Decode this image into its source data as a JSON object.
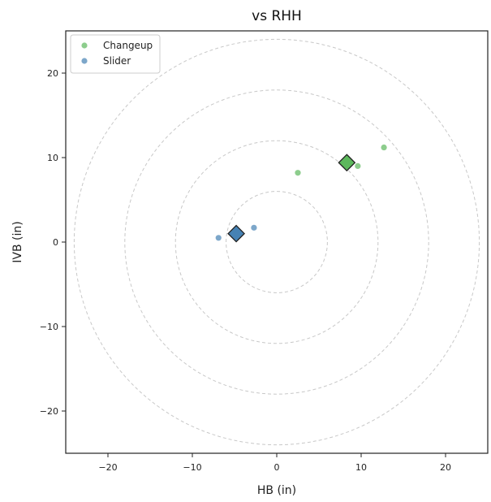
{
  "chart_data": {
    "type": "scatter",
    "title": "vs RHH",
    "xlabel": "HB (in)",
    "ylabel": "IVB (in)",
    "xlim": [
      -25,
      25
    ],
    "ylim": [
      -25,
      25
    ],
    "xticks": [
      -20,
      -10,
      0,
      10,
      20
    ],
    "yticks": [
      -20,
      -10,
      0,
      10,
      20
    ],
    "grid": false,
    "reference_circles_radii": [
      6,
      12,
      18,
      24
    ],
    "legend_position": "top-left",
    "series": [
      {
        "name": "Changeup",
        "color": "#5cb85c",
        "points": [
          {
            "x": 2.5,
            "y": 8.2
          },
          {
            "x": 9.6,
            "y": 9.0
          },
          {
            "x": 12.7,
            "y": 11.2
          }
        ],
        "mean": {
          "x": 8.3,
          "y": 9.4
        }
      },
      {
        "name": "Slider",
        "color": "#4682b4",
        "points": [
          {
            "x": -6.9,
            "y": 0.5
          },
          {
            "x": -2.7,
            "y": 1.7
          }
        ],
        "mean": {
          "x": -4.8,
          "y": 1.0
        }
      }
    ]
  }
}
